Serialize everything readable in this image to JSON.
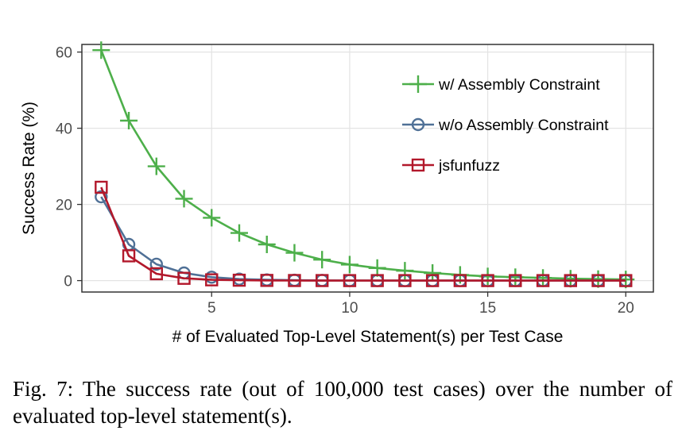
{
  "caption": "Fig. 7: The success rate (out of 100,000 test cases) over the number of evaluated top-level statement(s).",
  "chart_data": {
    "type": "line",
    "xlabel": "# of Evaluated Top-Level Statement(s) per Test Case",
    "ylabel": "Success Rate (%)",
    "xlim": [
      0.3,
      21.0
    ],
    "ylim": [
      -3,
      62
    ],
    "x_ticks": [
      5,
      10,
      15,
      20
    ],
    "y_ticks": [
      0,
      20,
      40,
      60
    ],
    "grid": true,
    "legend_position": "top-right",
    "x": [
      1,
      2,
      3,
      4,
      5,
      6,
      7,
      8,
      9,
      10,
      11,
      12,
      13,
      14,
      15,
      16,
      17,
      18,
      19,
      20
    ],
    "series": [
      {
        "name": "w/ Assembly Constraint",
        "marker": "plus",
        "color": "#4daf4a",
        "values": [
          60.5,
          42,
          30,
          21.5,
          16.5,
          12.5,
          9.5,
          7.3,
          5.5,
          4.2,
          3.3,
          2.6,
          2.0,
          1.5,
          1.1,
          0.9,
          0.7,
          0.5,
          0.4,
          0.3
        ]
      },
      {
        "name": "w/o Assembly Constraint",
        "marker": "circle",
        "color": "#4f7096",
        "values": [
          22,
          9.5,
          4.3,
          2.0,
          0.9,
          0.4,
          0.2,
          0.1,
          0.05,
          0.02,
          0.01,
          0,
          0,
          0,
          0,
          0,
          0,
          0,
          0,
          0
        ]
      },
      {
        "name": "jsfunfuzz",
        "marker": "square",
        "color": "#b2182b",
        "values": [
          24.5,
          6.5,
          1.8,
          0.6,
          0.2,
          0.1,
          0.05,
          0.02,
          0.01,
          0,
          0,
          0,
          0,
          0,
          0,
          0,
          0,
          0,
          0,
          0
        ]
      }
    ]
  }
}
